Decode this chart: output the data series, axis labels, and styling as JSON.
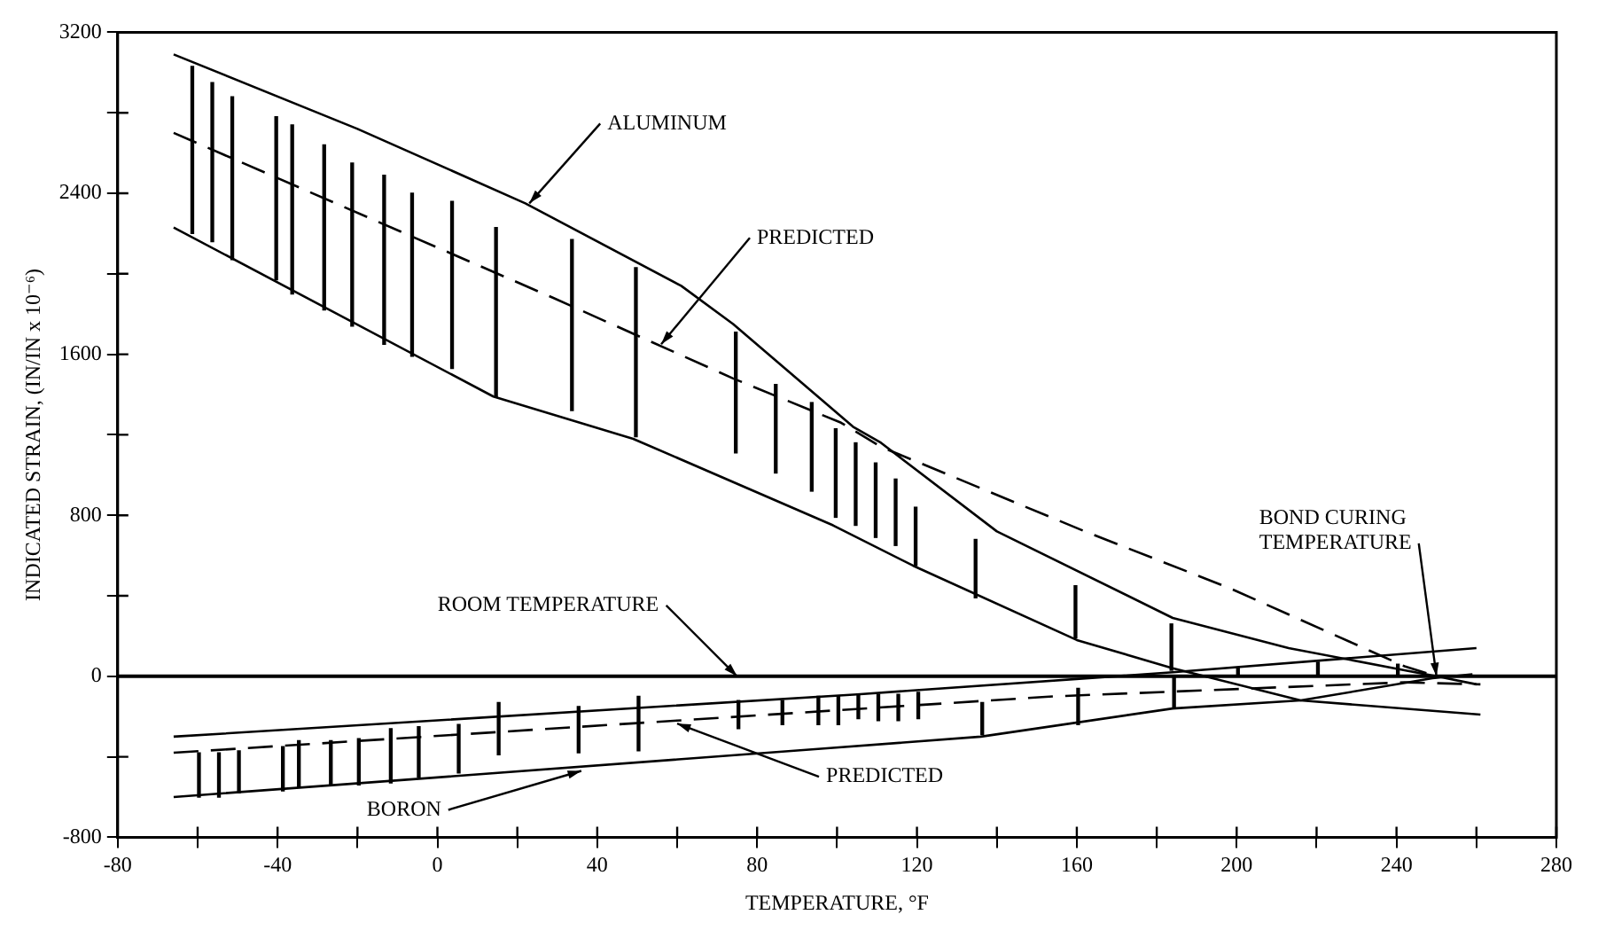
{
  "chart_data": {
    "type": "line",
    "xlabel": "TEMPERATURE, °F",
    "ylabel": "INDICATED STRAIN, (IN/IN x 10⁻⁶)",
    "xlim": [
      -80,
      280
    ],
    "ylim": [
      -800,
      3200
    ],
    "xticks": [
      -80,
      {
        "value": -60,
        "label": null
      },
      -40,
      {
        "value": -20,
        "label": null
      },
      0,
      {
        "value": 20,
        "label": null
      },
      40,
      {
        "value": 60,
        "label": null
      },
      80,
      {
        "value": 100,
        "label": null
      },
      120,
      {
        "value": 140,
        "label": null
      },
      160,
      {
        "value": 180,
        "label": null
      },
      200,
      {
        "value": 220,
        "label": null
      },
      240,
      {
        "value": 260,
        "label": null
      },
      280
    ],
    "yticks": [
      -800,
      {
        "value": -400,
        "label": null
      },
      0,
      {
        "value": 400,
        "label": null
      },
      800,
      {
        "value": 1200,
        "label": null
      },
      1600,
      {
        "value": 2000,
        "label": null
      },
      2400,
      {
        "value": 2800,
        "label": null
      },
      3200
    ],
    "grid": false,
    "legend": false,
    "marker": "none",
    "ref_lines": [
      {
        "axis": "y",
        "value": 0,
        "color": "#000000"
      }
    ],
    "series": [
      {
        "color": "#000000",
        "line_style": "solid",
        "x": [
          -66,
          -20,
          22,
          61,
          74,
          104,
          111,
          140,
          184,
          213,
          242,
          250,
          260
        ],
        "values": [
          3090,
          2720,
          2350,
          1940,
          1750,
          1240,
          1160,
          720,
          290,
          140,
          30,
          0,
          -40
        ]
      },
      {
        "color": "#000000",
        "line_style": "solid",
        "x": [
          -66,
          14,
          49,
          99,
          119,
          160,
          184,
          192,
          216,
          261
        ],
        "values": [
          2230,
          1390,
          1180,
          750,
          550,
          180,
          40,
          0,
          -120,
          -190
        ]
      },
      {
        "color": "#000000",
        "line_style": "dashed",
        "x": [
          -66,
          29,
          74,
          101,
          111,
          162,
          198,
          242,
          250
        ],
        "values": [
          2700,
          1880,
          1480,
          1260,
          1140,
          720,
          440,
          50,
          0
        ]
      },
      {
        "color": "#000000",
        "line_style": "solid",
        "x": [
          -66,
          105,
          184,
          260
        ],
        "values": [
          -300,
          -90,
          20,
          140
        ]
      },
      {
        "color": "#000000",
        "line_style": "solid",
        "x": [
          -66,
          96,
          136,
          184,
          216,
          249,
          259
        ],
        "values": [
          -600,
          -360,
          -300,
          -160,
          -120,
          -10,
          10
        ]
      },
      {
        "color": "#000000",
        "line_style": "dashed",
        "x": [
          -66,
          60,
          154,
          242,
          261
        ],
        "values": [
          -380,
          -220,
          -100,
          -30,
          -40
        ]
      },
      {
        "type": "bar",
        "color": "#000000",
        "x": [
          -61,
          -56,
          -51,
          -40,
          -36,
          -28,
          -21,
          -13,
          -6,
          4,
          15,
          34,
          50,
          75,
          85,
          94,
          100,
          105,
          110,
          115,
          120,
          135,
          160,
          184
        ],
        "base": [
          2200,
          2160,
          2070,
          1970,
          1900,
          1820,
          1740,
          1650,
          1590,
          1530,
          1390,
          1320,
          1190,
          1110,
          1010,
          920,
          790,
          750,
          690,
          650,
          550,
          390,
          190,
          30
        ],
        "values": [
          830,
          790,
          810,
          810,
          840,
          820,
          810,
          840,
          810,
          830,
          840,
          850,
          840,
          600,
          440,
          440,
          440,
          410,
          370,
          330,
          290,
          290,
          260,
          230
        ]
      },
      {
        "type": "bar",
        "color": "#000000",
        "x": [
          -60,
          -55,
          -50,
          -39,
          -35,
          -27,
          -20,
          -12,
          -5,
          5,
          15,
          35,
          50,
          75,
          86,
          95,
          100,
          105,
          110,
          115,
          120,
          136,
          160,
          184,
          200,
          220,
          240
        ],
        "base": [
          -600,
          -600,
          -580,
          -570,
          -550,
          -540,
          -540,
          -530,
          -500,
          -480,
          -390,
          -380,
          -370,
          -260,
          -240,
          -240,
          -240,
          -210,
          -220,
          -220,
          -210,
          -290,
          -240,
          -160,
          0,
          10,
          0
        ],
        "values": [
          220,
          220,
          210,
          220,
          230,
          220,
          230,
          270,
          250,
          240,
          260,
          230,
          270,
          140,
          120,
          140,
          140,
          120,
          130,
          130,
          130,
          160,
          180,
          160,
          40,
          60,
          60
        ]
      }
    ],
    "annotations": [
      {
        "text": "ALUMINUM",
        "x": 23,
        "y": 2350
      },
      {
        "text": "PREDICTED",
        "x": 56,
        "y": 1650
      },
      {
        "text": "ROOM TEMPERATURE",
        "x": 75,
        "y": 0
      },
      {
        "text": "BOND CURING\nTEMPERATURE",
        "x": 250,
        "y": 0
      },
      {
        "text": "PREDICTED",
        "x": 60,
        "y": -235
      },
      {
        "text": "BORON",
        "x": 36,
        "y": -470
      }
    ]
  }
}
